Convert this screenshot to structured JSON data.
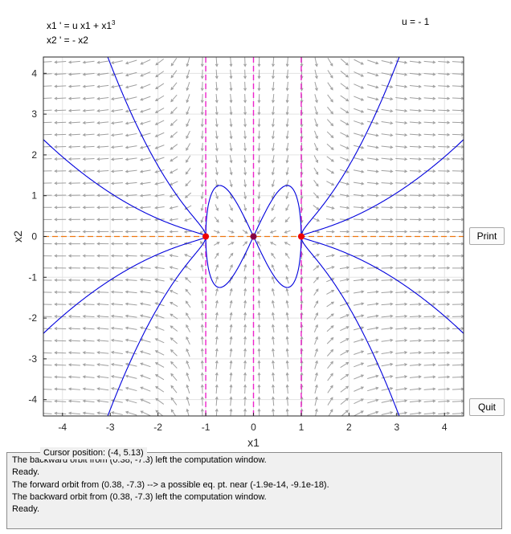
{
  "equations": {
    "line1_prefix": "x1 ' = u x1 + x1",
    "line1_exp": "3",
    "line2": "x2 ' = - x2"
  },
  "parameter": "u = - 1",
  "buttons": {
    "print": "Print",
    "quit": "Quit"
  },
  "cursor_position": "Cursor position:  (-4, 5.13)",
  "messages": [
    "The backward orbit from (0.38, -7.3) left the computation window.",
    "Ready.",
    "The forward orbit from (0.38, -7.3) --> a possible eq. pt. near (-1.9e-14, -9.1e-18).",
    "The backward orbit from (0.38, -7.3) left the computation window.",
    "Ready."
  ],
  "colors": {
    "orbit": "#0000dd",
    "vertical_nullcline": "#ee22cc",
    "horizontal_nullcline": "#ee7711",
    "equilibrium": "#ee0000",
    "center_equilibrium": "#880044",
    "arrow": "#a0a0a0"
  },
  "chart_data": {
    "type": "phase-portrait",
    "xlabel": "x1",
    "ylabel": "x2",
    "xlim": [
      -4.4,
      4.4
    ],
    "ylim": [
      -4.4,
      4.4
    ],
    "xticks": [
      -4,
      -3,
      -2,
      -1,
      0,
      1,
      2,
      3,
      4
    ],
    "yticks": [
      -4,
      -3,
      -2,
      -1,
      0,
      1,
      2,
      3,
      4
    ],
    "grid": true,
    "equilibria": [
      {
        "x": -1,
        "y": 0
      },
      {
        "x": 0,
        "y": 0
      },
      {
        "x": 1,
        "y": 0
      }
    ],
    "vertical_nullclines": [
      -1,
      0,
      1
    ],
    "horizontal_nullclines": [
      0
    ]
  }
}
